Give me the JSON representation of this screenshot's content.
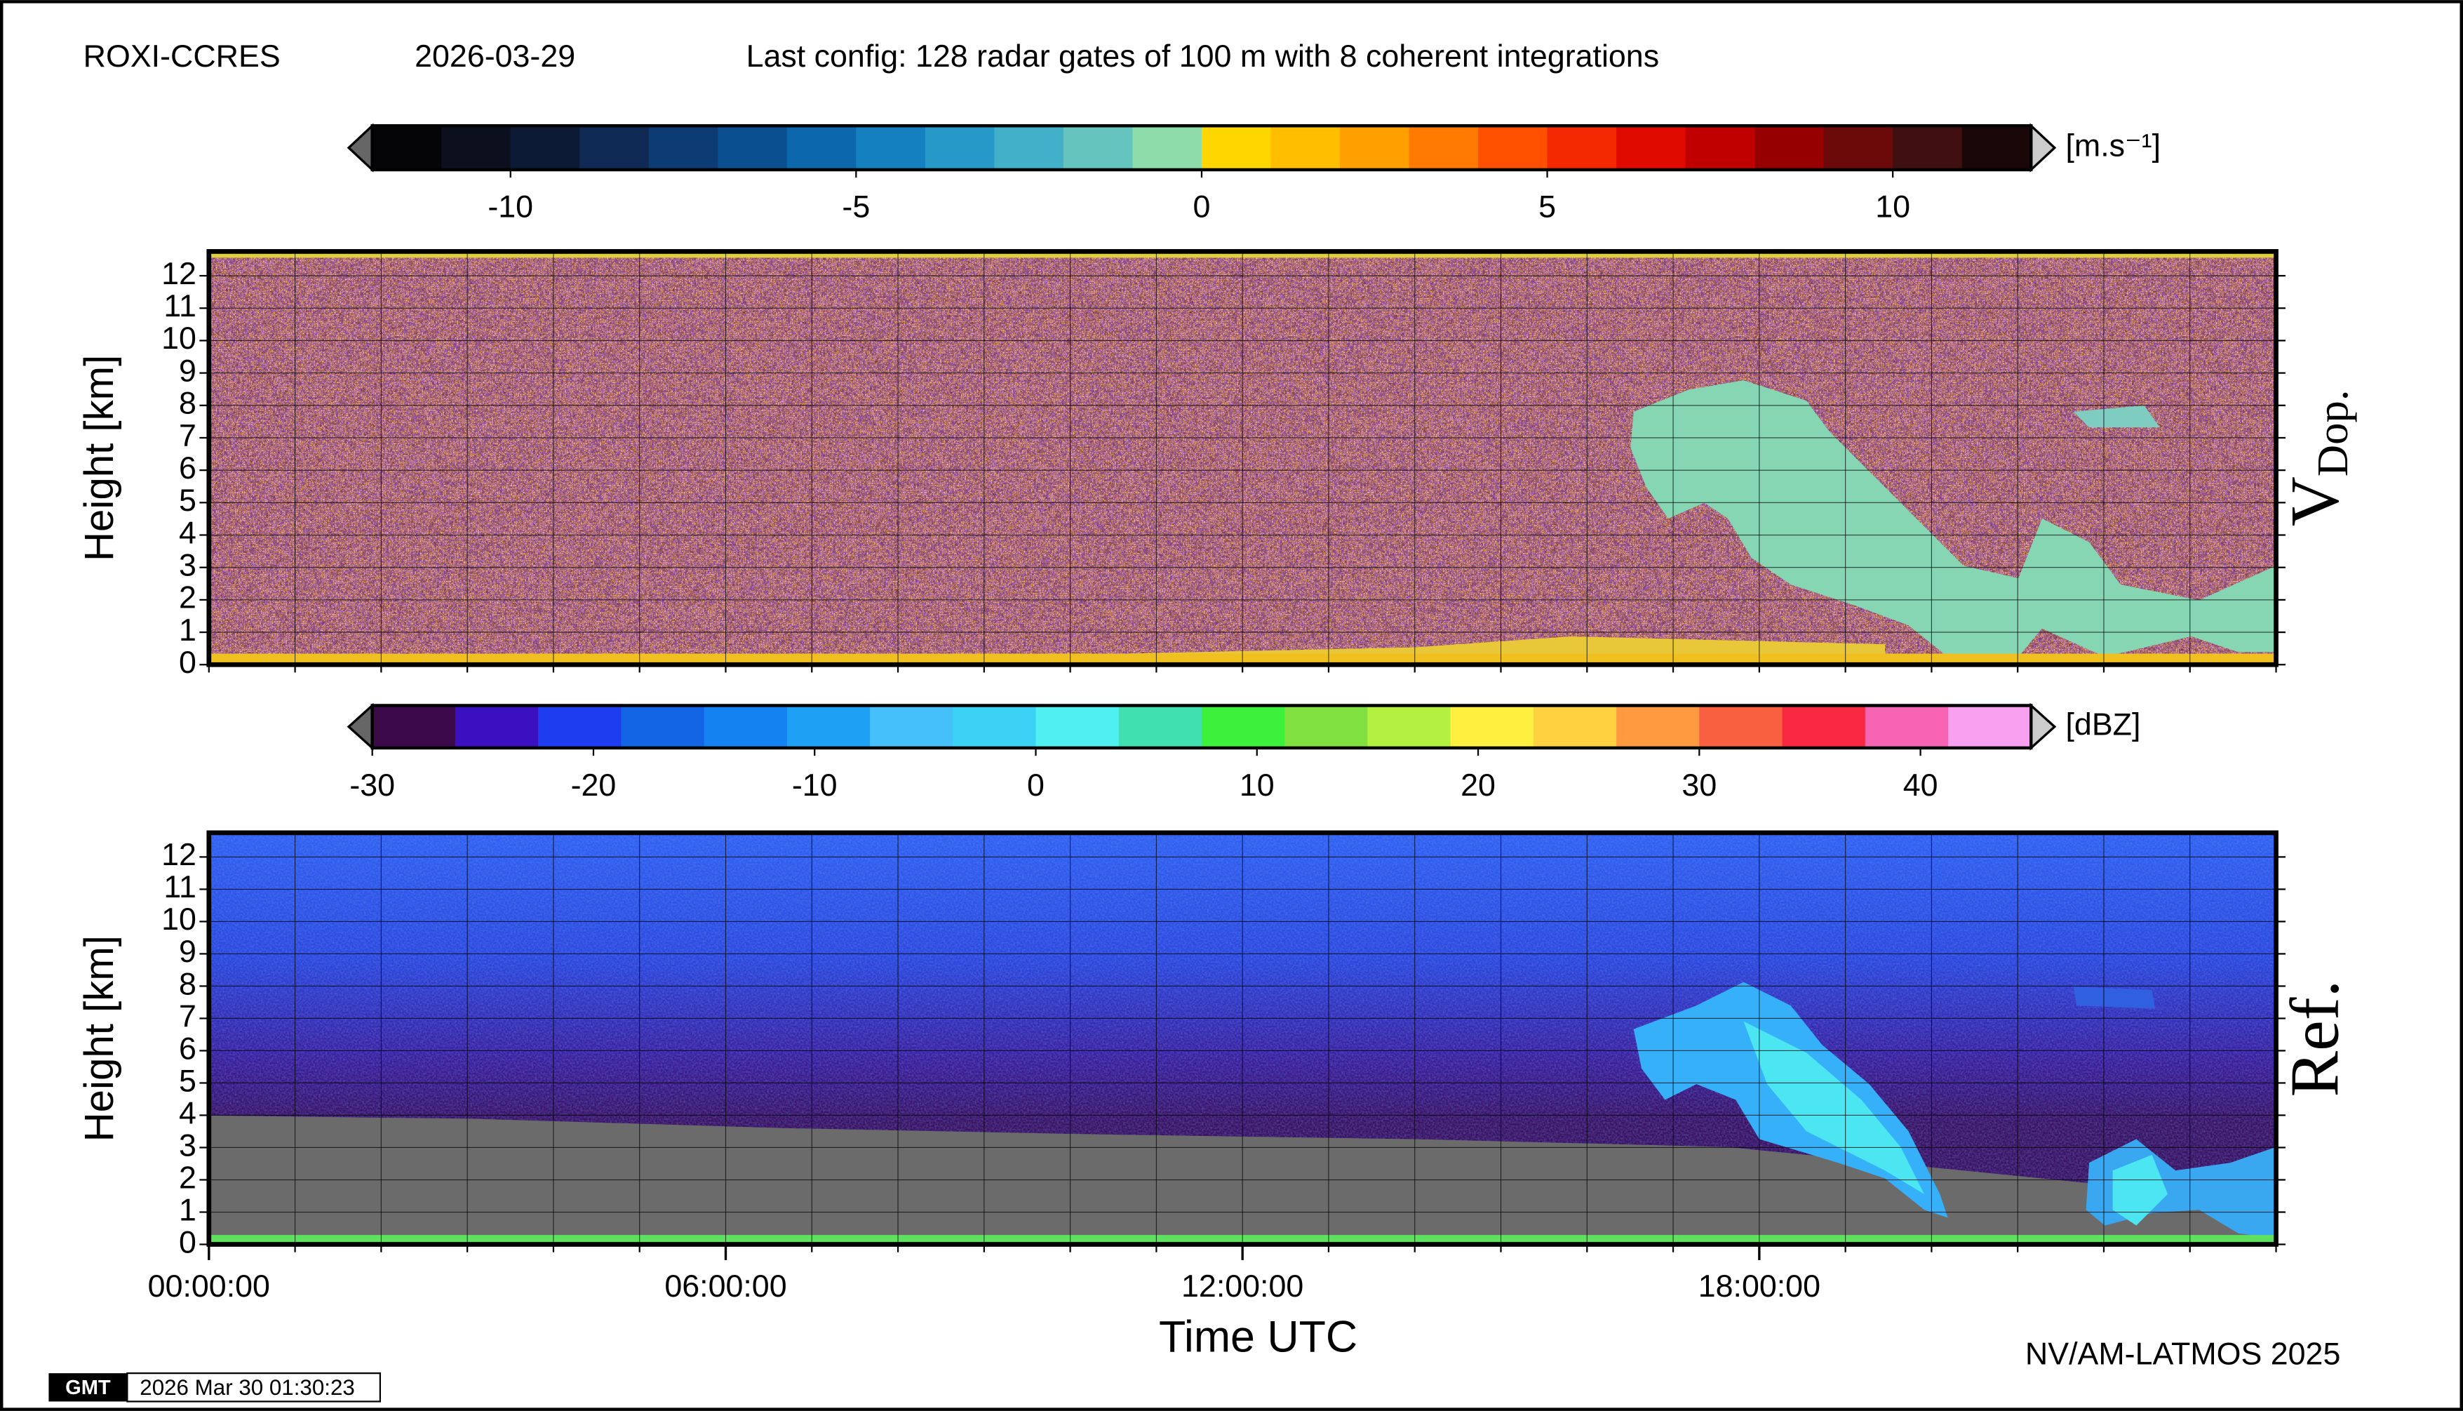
{
  "header": {
    "station": "ROXI-CCRES",
    "date": "2026-03-29",
    "config": "Last config: 128 radar gates of 100 m with 8 coherent integrations"
  },
  "chart_data": [
    {
      "type": "heatmap",
      "panel_label": "V",
      "panel_label_sub": "Dop.",
      "ylabel": "Height [km]",
      "xlim": [
        0,
        24
      ],
      "xgrid": [
        0,
        1,
        2,
        3,
        4,
        5,
        6,
        7,
        8,
        9,
        10,
        11,
        12,
        13,
        14,
        15,
        16,
        17,
        18,
        19,
        20,
        21,
        22,
        23,
        24
      ],
      "ylim": [
        0,
        12.75
      ],
      "yticks": [
        0,
        1,
        2,
        3,
        4,
        5,
        6,
        7,
        8,
        9,
        10,
        11,
        12
      ],
      "colorbar": {
        "unit": "[m.s⁻¹]",
        "clim": [
          -12,
          12
        ],
        "ticks": [
          -10,
          -5,
          0,
          5,
          10
        ],
        "colors": [
          "#050508",
          "#0b0f1e",
          "#0d1a35",
          "#0f2a55",
          "#0c3c73",
          "#0a5090",
          "#0d67ad",
          "#1580c0",
          "#2799c8",
          "#42b0c8",
          "#66c4bf",
          "#8fdcab",
          "#ffd700",
          "#ffbf00",
          "#ffa000",
          "#ff7a00",
          "#ff5000",
          "#f42800",
          "#e00a00",
          "#c00000",
          "#960000",
          "#6c0a0a",
          "#401010",
          "#1a0808"
        ]
      }
    },
    {
      "type": "heatmap",
      "panel_label": "Ref.",
      "ylabel": "Height [km]",
      "xlabel": "Time UTC",
      "xlim": [
        0,
        24
      ],
      "xgrid": [
        0,
        1,
        2,
        3,
        4,
        5,
        6,
        7,
        8,
        9,
        10,
        11,
        12,
        13,
        14,
        15,
        16,
        17,
        18,
        19,
        20,
        21,
        22,
        23,
        24
      ],
      "xticks": [
        {
          "value": 0,
          "label": "00:00:00"
        },
        {
          "value": 6,
          "label": "06:00:00"
        },
        {
          "value": 12,
          "label": "12:00:00"
        },
        {
          "value": 18,
          "label": "18:00:00"
        }
      ],
      "ylim": [
        0,
        12.75
      ],
      "yticks": [
        0,
        1,
        2,
        3,
        4,
        5,
        6,
        7,
        8,
        9,
        10,
        11,
        12
      ],
      "colorbar": {
        "unit": "[dBZ]",
        "clim": [
          -30,
          45
        ],
        "ticks": [
          -30,
          -20,
          -10,
          0,
          10,
          20,
          30,
          40
        ],
        "colors": [
          "#3c0a4a",
          "#3a10c0",
          "#1e3cf0",
          "#1464e6",
          "#1482f0",
          "#1ea0f5",
          "#46c0fa",
          "#3cd2f5",
          "#50f0f0",
          "#40e0b0",
          "#3cf03c",
          "#80e040",
          "#b4f040",
          "#fff040",
          "#ffd040",
          "#ff9a40",
          "#f86040",
          "#f82840",
          "#f864b4",
          "#f8a0f0"
        ]
      }
    }
  ],
  "footer": {
    "credit": "NV/AM-LATMOS 2025",
    "timestamp": "2026 Mar 30 01:30:23"
  }
}
